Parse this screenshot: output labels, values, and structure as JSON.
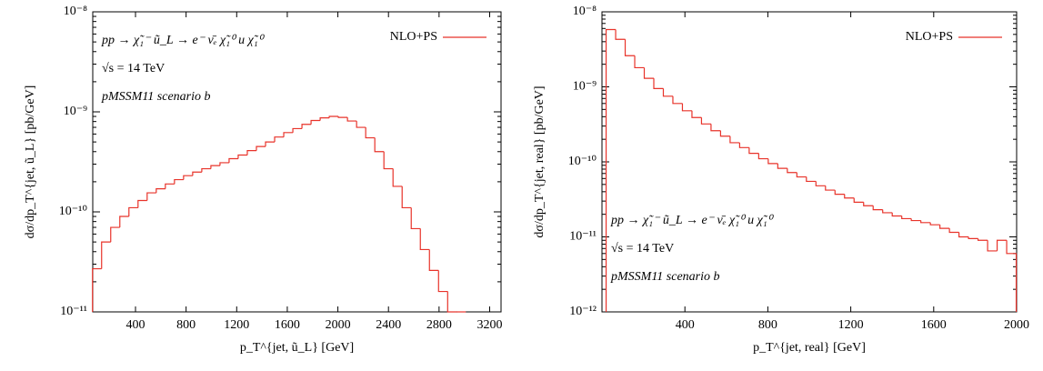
{
  "chart_data": [
    {
      "type": "histogram",
      "x_label": "p_T^{jet, ũ_L} [GeV]",
      "y_label": "dσ/dp_T^{jet, ũ_L} [pb/GeV]",
      "annotations": [
        "pp → χ̃₁⁻ ũ_L → e⁻ ν̄ₑ χ̃₁⁰ u χ̃₁⁰",
        "√s = 14 TeV",
        "pMSSM11 scenario b"
      ],
      "annotation_corner": "upper left",
      "legend": "upper right",
      "log_y": true,
      "series": [
        {
          "name": "NLO+PS",
          "color": "#e8332a",
          "bins": [
            60,
            132,
            204,
            276,
            348,
            420,
            492,
            564,
            636,
            708,
            780,
            852,
            924,
            996,
            1068,
            1140,
            1212,
            1284,
            1356,
            1428,
            1500,
            1572,
            1644,
            1716,
            1788,
            1860,
            1932,
            2004,
            2076,
            2148,
            2220,
            2292,
            2364,
            2436,
            2508,
            2580,
            2652,
            2724,
            2796,
            2868,
            2940,
            3012
          ],
          "values": [
            2.7e-11,
            5e-11,
            7e-11,
            9e-11,
            1.1e-10,
            1.3e-10,
            1.55e-10,
            1.7e-10,
            1.9e-10,
            2.1e-10,
            2.3e-10,
            2.5e-10,
            2.7e-10,
            2.9e-10,
            3.1e-10,
            3.4e-10,
            3.7e-10,
            4.1e-10,
            4.5e-10,
            5e-10,
            5.6e-10,
            6.2e-10,
            6.8e-10,
            7.5e-10,
            8.2e-10,
            8.7e-10,
            9e-10,
            8.8e-10,
            8.1e-10,
            7e-10,
            5.5e-10,
            4e-10,
            2.7e-10,
            1.8e-10,
            1.1e-10,
            6.8e-11,
            4.2e-11,
            2.6e-11,
            1.6e-11,
            1e-11,
            1e-11
          ]
        }
      ],
      "xlim": [
        62,
        3290
      ],
      "xticks": [
        400,
        800,
        1200,
        1600,
        2000,
        2400,
        2800,
        3200
      ],
      "ylim": [
        1e-11,
        1e-08
      ],
      "yticks": [
        {
          "value": 1e-11,
          "label": "10⁻¹¹"
        },
        {
          "value": 1e-10,
          "label": "10⁻¹⁰"
        },
        {
          "value": 1e-09,
          "label": "10⁻⁹"
        },
        {
          "value": 1e-08,
          "label": "10⁻⁸"
        }
      ]
    },
    {
      "type": "histogram",
      "x_label": "p_T^{jet, real} [GeV]",
      "y_label": "dσ/dp_T^{jet, real} [pb/GeV]",
      "annotations": [
        "pp → χ̃₁⁻ ũ_L → e⁻ ν̄ₑ χ̃₁⁰ u χ̃₁⁰",
        "√s = 14 TeV",
        "pMSSM11 scenario b"
      ],
      "annotation_corner": "lower left",
      "legend": "upper right",
      "log_y": true,
      "series": [
        {
          "name": "NLO+PS",
          "color": "#e8332a",
          "bins": [
            20,
            66,
            112,
            158,
            204,
            250,
            296,
            342,
            388,
            434,
            480,
            526,
            572,
            618,
            664,
            710,
            756,
            802,
            848,
            894,
            940,
            986,
            1032,
            1078,
            1124,
            1170,
            1216,
            1262,
            1308,
            1354,
            1400,
            1446,
            1492,
            1538,
            1584,
            1630,
            1676,
            1722,
            1768,
            1814,
            1860,
            1906,
            1952,
            1998
          ],
          "values": [
            5.8e-09,
            4.3e-09,
            2.6e-09,
            1.8e-09,
            1.3e-09,
            9.5e-10,
            7.5e-10,
            6e-10,
            4.8e-10,
            3.9e-10,
            3.2e-10,
            2.6e-10,
            2.2e-10,
            1.8e-10,
            1.55e-10,
            1.3e-10,
            1.1e-10,
            9.5e-11,
            8.2e-11,
            7.2e-11,
            6.3e-11,
            5.5e-11,
            4.8e-11,
            4.2e-11,
            3.7e-11,
            3.3e-11,
            2.9e-11,
            2.6e-11,
            2.3e-11,
            2.1e-11,
            1.9e-11,
            1.75e-11,
            1.65e-11,
            1.55e-11,
            1.45e-11,
            1.3e-11,
            1.15e-11,
            1e-11,
            9.5e-12,
            9e-12,
            6.5e-12,
            9e-12,
            6e-12
          ]
        }
      ],
      "xlim": [
        0,
        2000
      ],
      "xticks": [
        400,
        800,
        1200,
        1600,
        2000
      ],
      "ylim": [
        1e-12,
        1e-08
      ],
      "yticks": [
        {
          "value": 1e-12,
          "label": "10⁻¹²"
        },
        {
          "value": 1e-11,
          "label": "10⁻¹¹"
        },
        {
          "value": 1e-10,
          "label": "10⁻¹⁰"
        },
        {
          "value": 1e-09,
          "label": "10⁻⁹"
        },
        {
          "value": 1e-08,
          "label": "10⁻⁸"
        }
      ]
    }
  ]
}
